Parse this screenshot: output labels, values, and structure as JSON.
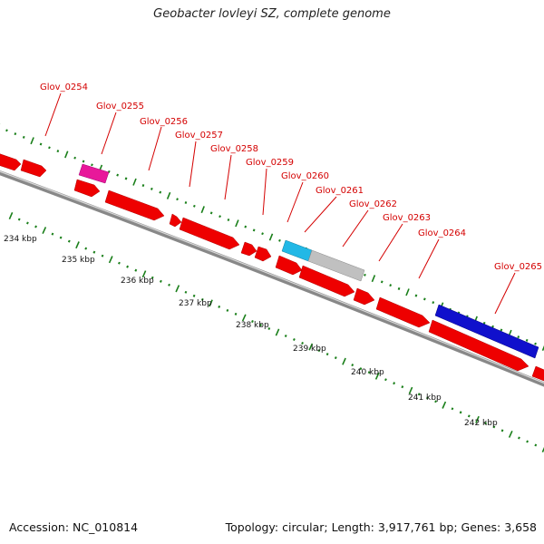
{
  "title": "Geobacter lovleyi SZ, complete genome",
  "footer": {
    "accession": "Accession: NC_010814",
    "topology": "Topology: circular; Length: 3,917,761 bp; Genes: 3,658"
  },
  "colors": {
    "gene": "#ee0000",
    "gene_pink": "#e8189a",
    "gene_cyan": "#22b8e6",
    "gene_gray": "#c0c0c0",
    "gene_blue": "#1010cc",
    "label": "#d40000",
    "tick": "#1a7f1a",
    "backbone": "#888888"
  },
  "genes": [
    {
      "name": "Glov_0254"
    },
    {
      "name": "Glov_0255"
    },
    {
      "name": "Glov_0256"
    },
    {
      "name": "Glov_0257"
    },
    {
      "name": "Glov_0258"
    },
    {
      "name": "Glov_0259"
    },
    {
      "name": "Glov_0260"
    },
    {
      "name": "Glov_0261"
    },
    {
      "name": "Glov_0262"
    },
    {
      "name": "Glov_0263"
    },
    {
      "name": "Glov_0264"
    },
    {
      "name": "Glov_0265"
    }
  ],
  "kbp_labels": [
    "234 kbp",
    "235 kbp",
    "236 kbp",
    "237 kbp",
    "238 kbp",
    "239 kbp",
    "240 kbp",
    "241 kbp",
    "242 kbp"
  ]
}
